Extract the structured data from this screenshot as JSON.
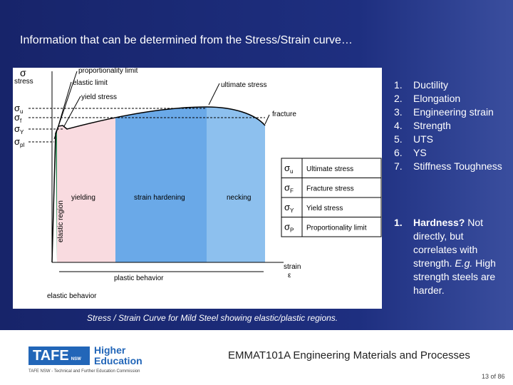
{
  "header": {
    "title": "Information that can be determined from the Stress/Strain curve…"
  },
  "diagram": {
    "axis_y": {
      "symbol": "σ",
      "label": "stress"
    },
    "axis_x": {
      "label": "strain",
      "symbol": "ε"
    },
    "y_marks": [
      {
        "sym": "σ",
        "sub": "u"
      },
      {
        "sym": "σ",
        "sub": "f"
      },
      {
        "sym": "σ",
        "sub": "Y"
      },
      {
        "sym": "σ",
        "sub": "pl"
      }
    ],
    "callouts": [
      "proportionality limit",
      "elastic limit",
      "yield stress",
      "ultimate stress",
      "fracture"
    ],
    "regions": [
      "yielding",
      "strain hardening",
      "necking",
      "elastic region"
    ],
    "bottom": [
      "plastic behavior",
      "elastic behavior"
    ],
    "legend": [
      {
        "sym": "σ",
        "sub": "u",
        "text": "Ultimate stress"
      },
      {
        "sym": "σ",
        "sub": "F",
        "text": "Fracture stress"
      },
      {
        "sym": "σ",
        "sub": "Y",
        "text": "Yield stress"
      },
      {
        "sym": "σ",
        "sub": "P",
        "text": "Proportionality limit"
      }
    ]
  },
  "caption": "Stress / Strain Curve for Mild Steel showing elastic/plastic regions.",
  "list": {
    "items": [
      {
        "number": "1.",
        "text": "Ductility"
      },
      {
        "number": "2.",
        "text": "Elongation"
      },
      {
        "number": "3.",
        "text": "Engineering strain"
      },
      {
        "number": "4.",
        "text": "Strength"
      },
      {
        "number": "5.",
        "text": "UTS"
      },
      {
        "number": "6.",
        "text": "YS"
      },
      {
        "number": "7.",
        "text": "Stiffness Toughness"
      }
    ]
  },
  "note": {
    "number": "1.",
    "bold": "Hardness?",
    "text": " Not directly, but correlates with strength. ",
    "italic": "E.g.",
    "rest": " High strength steels are harder."
  },
  "footer": {
    "logo": "TAFE",
    "logo_sub": "NSW",
    "brand_line1": "Higher",
    "brand_line2": "Education",
    "org": "TAFE NSW - Technical and Further Education Commission",
    "course": "EMMAT101A Engineering Materials and Processes",
    "page": "13 of 86"
  }
}
